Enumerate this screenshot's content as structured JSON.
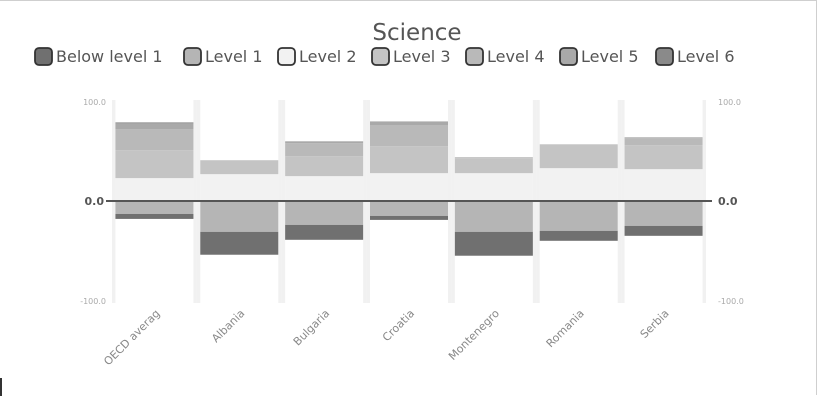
{
  "chart_data": {
    "type": "bar",
    "stacked": "diverging",
    "title": "Science",
    "categories": [
      "OECD averag",
      "Albania",
      "Bulgaria",
      "Croatia",
      "Montenegro",
      "Romania",
      "Serbia"
    ],
    "ylim": [
      -100,
      100
    ],
    "y_ticks": [
      "100.0",
      "0.0",
      "-100.0"
    ],
    "legend_position": "top",
    "grid": false,
    "series": [
      {
        "name": "Below level 1",
        "color": "#707070",
        "values": [
          -5,
          -23,
          -15,
          -4,
          -24,
          -10,
          -10
        ]
      },
      {
        "name": "Level 1",
        "color": "#b5b5b5",
        "values": [
          -13,
          -31,
          -24,
          -15,
          -31,
          -30,
          -25
        ]
      },
      {
        "name": "Level 2",
        "color": "#f2f2f2",
        "values": [
          23,
          27,
          25,
          28,
          28,
          33,
          32
        ]
      },
      {
        "name": "Level 3",
        "color": "#c4c4c4",
        "values": [
          28,
          14,
          20,
          27,
          15,
          24,
          24
        ]
      },
      {
        "name": "Level 4",
        "color": "#b9b9b9",
        "values": [
          21,
          0,
          13,
          21,
          1,
          0,
          7
        ]
      },
      {
        "name": "Level 5",
        "color": "#a9a9a9",
        "values": [
          6,
          0,
          2,
          4,
          0,
          0,
          1
        ]
      },
      {
        "name": "Level 6",
        "color": "#8a8a8a",
        "values": [
          1,
          0,
          0,
          0,
          0,
          0,
          0
        ]
      }
    ]
  }
}
